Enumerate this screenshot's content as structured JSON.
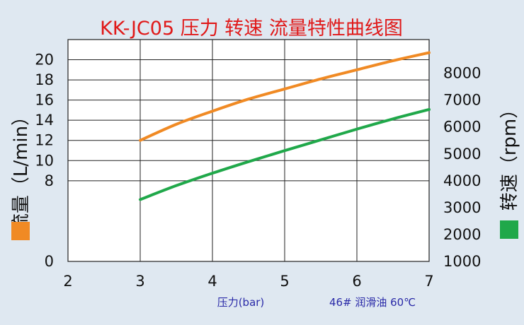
{
  "chart_data": {
    "type": "line",
    "title": "KK-JC05 压力 转速 流量特性曲线图",
    "xlabel": "压力(bar)",
    "ylabel_left": "流量（L/min）",
    "ylabel_right": "转速（rpm）",
    "note": "46# 润滑油  60℃",
    "xlim": [
      2,
      7
    ],
    "ylim_left": [
      0,
      22
    ],
    "ylim_right": [
      1000,
      9250
    ],
    "x_ticks": [
      2,
      3,
      4,
      5,
      6,
      7
    ],
    "y_left_ticks": [
      0,
      8,
      10,
      12,
      14,
      16,
      18,
      20
    ],
    "y_right_ticks": [
      1000,
      2000,
      3000,
      4000,
      5000,
      6000,
      7000,
      8000
    ],
    "grid": true,
    "series": [
      {
        "name": "流量",
        "axis": "left",
        "color": "#f08a24",
        "x": [
          3,
          3.5,
          4,
          4.5,
          5,
          5.5,
          6,
          6.5,
          7
        ],
        "y": [
          12.0,
          13.6,
          14.9,
          16.1,
          17.1,
          18.1,
          19.0,
          19.9,
          20.7
        ]
      },
      {
        "name": "转速",
        "axis": "right",
        "color": "#20a84a",
        "x": [
          3,
          3.5,
          4,
          4.5,
          5,
          5.5,
          6,
          6.5,
          7
        ],
        "y": [
          3300,
          3820,
          4280,
          4710,
          5120,
          5520,
          5920,
          6300,
          6650
        ]
      }
    ]
  }
}
